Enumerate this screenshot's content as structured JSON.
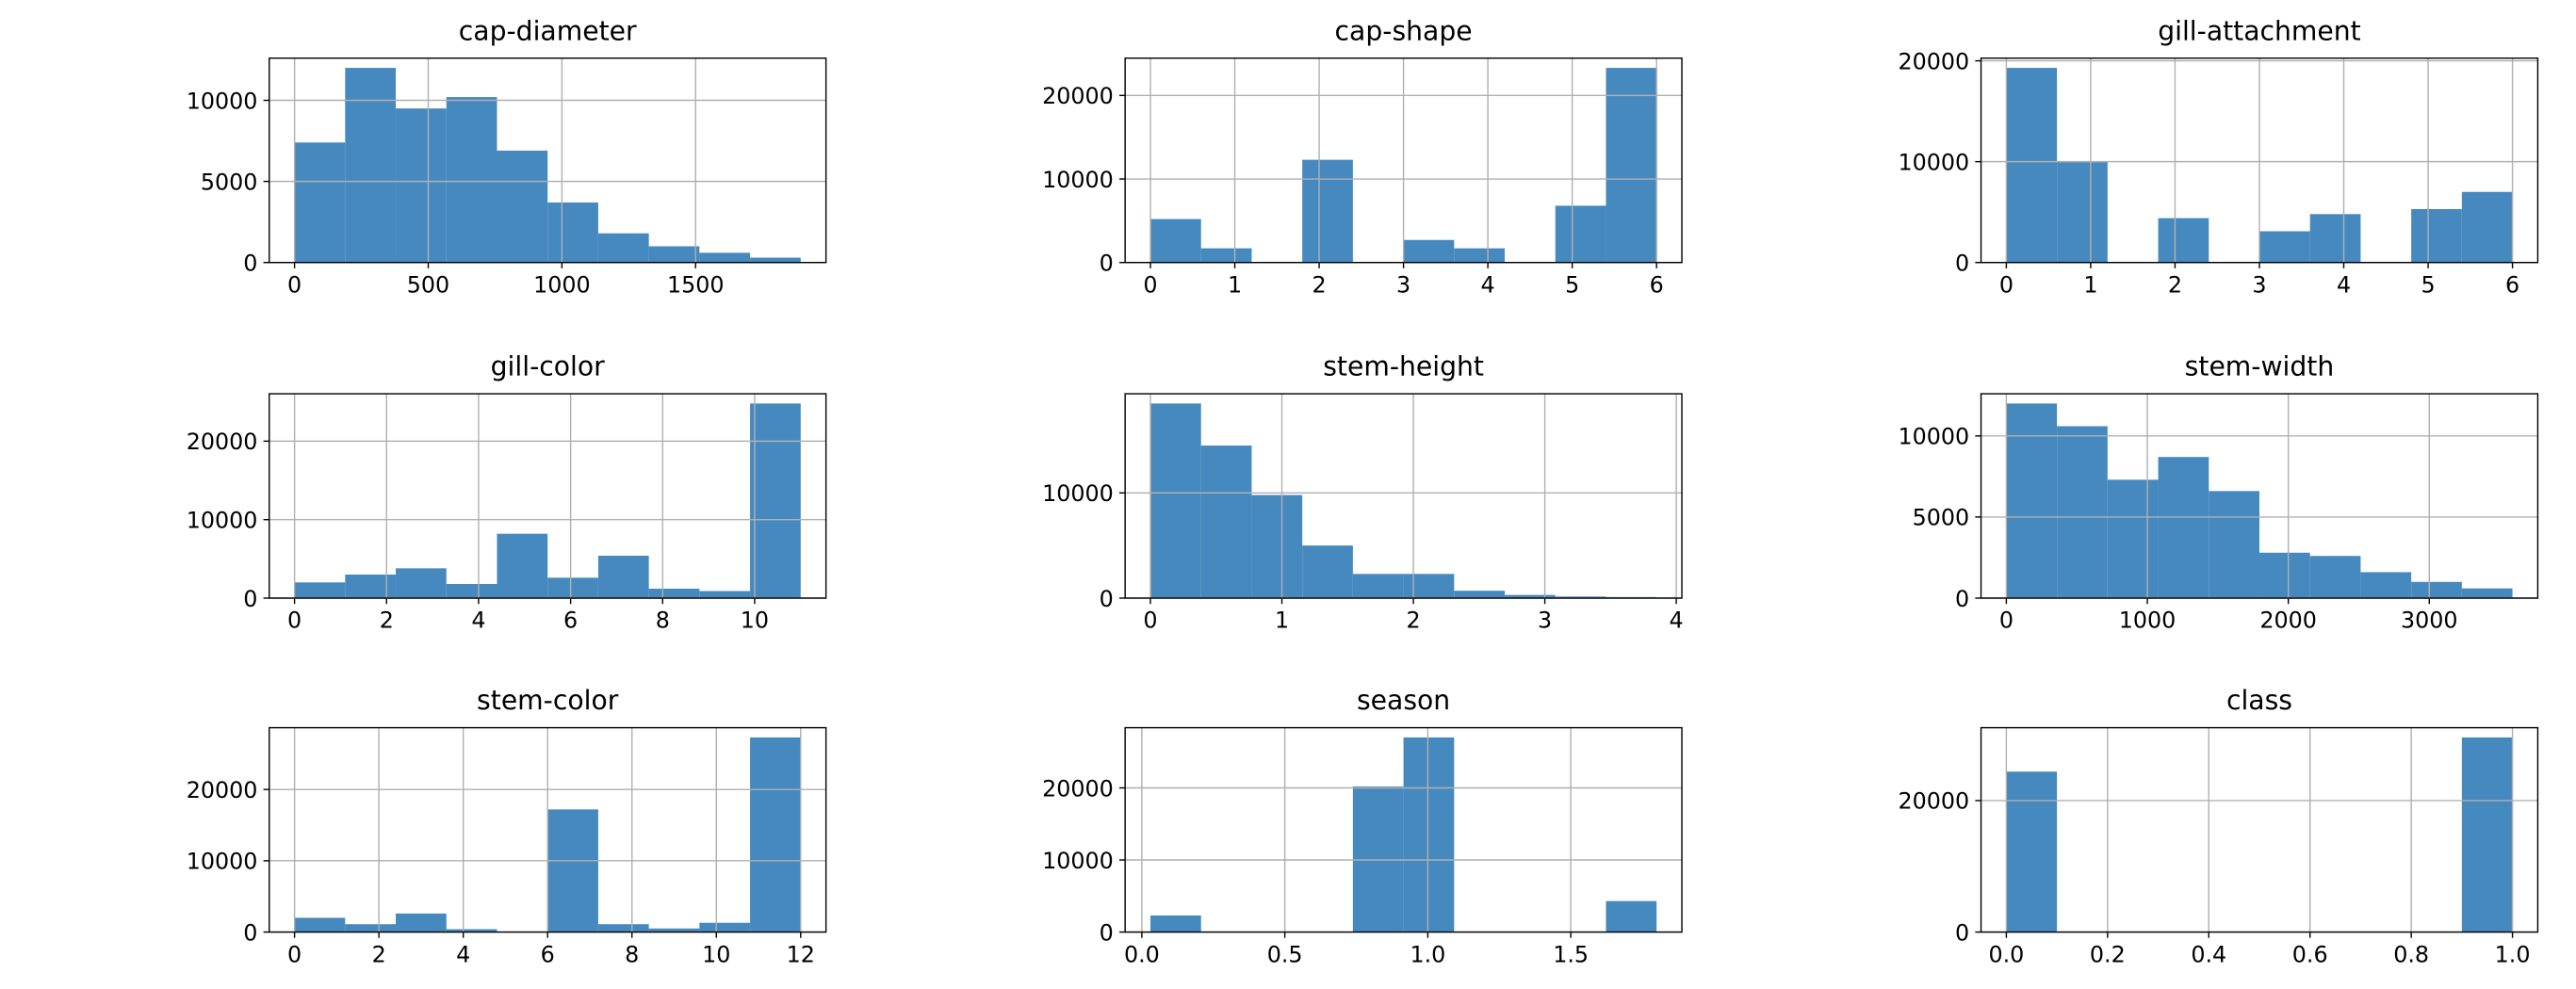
{
  "chart_data": [
    {
      "type": "histogram",
      "title": "cap-diameter",
      "color": "#4689bf",
      "grid": true,
      "bins": [
        0,
        189.3,
        378.6,
        567.9,
        757.2,
        946.5,
        1135.8,
        1325.1,
        1514.4,
        1703.7,
        1893
      ],
      "counts": [
        7400,
        12000,
        9500,
        10200,
        6900,
        3700,
        1800,
        1000,
        600,
        300
      ],
      "xlim": [
        -94.65,
        1987.65
      ],
      "xticks": [
        0,
        500,
        1000,
        1500
      ],
      "ylim": [
        0,
        12600
      ],
      "yticks": [
        0,
        5000,
        10000
      ]
    },
    {
      "type": "histogram",
      "title": "cap-shape",
      "color": "#4689bf",
      "grid": true,
      "bins": [
        0,
        0.6,
        1.2,
        1.8,
        2.4,
        3.0,
        3.6,
        4.2,
        4.8,
        5.4,
        6
      ],
      "counts": [
        5200,
        1700,
        0,
        12300,
        0,
        2700,
        1700,
        0,
        6800,
        23300
      ],
      "xlim": [
        -0.3,
        6.3
      ],
      "xticks": [
        0,
        1,
        2,
        3,
        4,
        5,
        6
      ],
      "ylim": [
        0,
        24465
      ],
      "yticks": [
        0,
        10000,
        20000
      ]
    },
    {
      "type": "histogram",
      "title": "gill-attachment",
      "color": "#4689bf",
      "grid": true,
      "bins": [
        0,
        0.6,
        1.2,
        1.8,
        2.4,
        3.0,
        3.6,
        4.2,
        4.8,
        5.4,
        6
      ],
      "counts": [
        19300,
        10000,
        0,
        4400,
        0,
        3100,
        4800,
        0,
        5300,
        7000
      ],
      "xlim": [
        -0.3,
        6.3
      ],
      "xticks": [
        0,
        1,
        2,
        3,
        4,
        5,
        6
      ],
      "ylim": [
        0,
        20265
      ],
      "yticks": [
        0,
        10000,
        20000
      ]
    },
    {
      "type": "histogram",
      "title": "gill-color",
      "color": "#4689bf",
      "grid": true,
      "bins": [
        0,
        1.1,
        2.2,
        3.3,
        4.4,
        5.5,
        6.6,
        7.7,
        8.8,
        9.9,
        11
      ],
      "counts": [
        2000,
        3000,
        3800,
        1800,
        8200,
        2600,
        5400,
        1200,
        900,
        24800
      ],
      "xlim": [
        -0.55,
        11.55
      ],
      "xticks": [
        0,
        2,
        4,
        6,
        8,
        10
      ],
      "ylim": [
        0,
        26040
      ],
      "yticks": [
        0,
        10000,
        20000
      ]
    },
    {
      "type": "histogram",
      "title": "stem-height",
      "color": "#4689bf",
      "grid": true,
      "bins": [
        0,
        0.385,
        0.77,
        1.155,
        1.54,
        1.925,
        2.31,
        2.695,
        3.08,
        3.465,
        3.85
      ],
      "counts": [
        18500,
        14500,
        9800,
        5000,
        2300,
        2300,
        700,
        300,
        150,
        100
      ],
      "xlim": [
        -0.1925,
        4.0425
      ],
      "xticks": [
        0,
        1,
        2,
        3,
        4
      ],
      "ylim": [
        0,
        19425
      ],
      "yticks": [
        0,
        10000
      ]
    },
    {
      "type": "histogram",
      "title": "stem-width",
      "color": "#4689bf",
      "grid": true,
      "bins": [
        0,
        359,
        718,
        1077,
        1436,
        1795,
        2154,
        2513,
        2872,
        3231,
        3590
      ],
      "counts": [
        12000,
        10600,
        7300,
        8700,
        6600,
        2800,
        2600,
        1600,
        1000,
        600
      ],
      "xlim": [
        -179.5,
        3769.5
      ],
      "xticks": [
        0,
        1000,
        2000,
        3000
      ],
      "ylim": [
        0,
        12600
      ],
      "yticks": [
        0,
        5000,
        10000
      ]
    },
    {
      "type": "histogram",
      "title": "stem-color",
      "color": "#4689bf",
      "grid": true,
      "bins": [
        0,
        1.2,
        2.4,
        3.6,
        4.8,
        6.0,
        7.2,
        8.4,
        9.6,
        10.8,
        12
      ],
      "counts": [
        2000,
        1100,
        2600,
        400,
        0,
        17200,
        1100,
        500,
        1300,
        27300
      ],
      "xlim": [
        -0.6,
        12.6
      ],
      "xticks": [
        0,
        2,
        4,
        6,
        8,
        10,
        12
      ],
      "ylim": [
        0,
        28665
      ],
      "yticks": [
        0,
        10000,
        20000
      ]
    },
    {
      "type": "histogram",
      "title": "season",
      "color": "#4689bf",
      "grid": true,
      "bins": [
        0.03,
        0.207,
        0.384,
        0.561,
        0.738,
        0.915,
        1.092,
        1.269,
        1.446,
        1.623,
        1.8
      ],
      "counts": [
        2300,
        0,
        0,
        0,
        20200,
        27000,
        0,
        0,
        0,
        4300
      ],
      "xlim": [
        -0.0585,
        1.8885
      ],
      "xticks": [
        {
          "value": 0,
          "label": "0.0"
        },
        0.5,
        {
          "value": 1,
          "label": "1.0"
        },
        1.5
      ],
      "ylim": [
        0,
        28350
      ],
      "yticks": [
        0,
        10000,
        20000
      ]
    },
    {
      "type": "histogram",
      "title": "class",
      "color": "#4689bf",
      "grid": true,
      "bins": [
        0,
        0.1,
        0.2,
        0.3,
        0.4,
        0.5,
        0.6,
        0.7,
        0.8,
        0.9,
        1
      ],
      "counts": [
        24400,
        0,
        0,
        0,
        0,
        0,
        0,
        0,
        0,
        29600
      ],
      "xlim": [
        -0.05,
        1.05
      ],
      "xticks": [
        {
          "value": 0,
          "label": "0.0"
        },
        0.2,
        0.4,
        0.6,
        0.8,
        {
          "value": 1,
          "label": "1.0"
        }
      ],
      "ylim": [
        0,
        31080
      ],
      "yticks": [
        0,
        20000
      ]
    }
  ]
}
